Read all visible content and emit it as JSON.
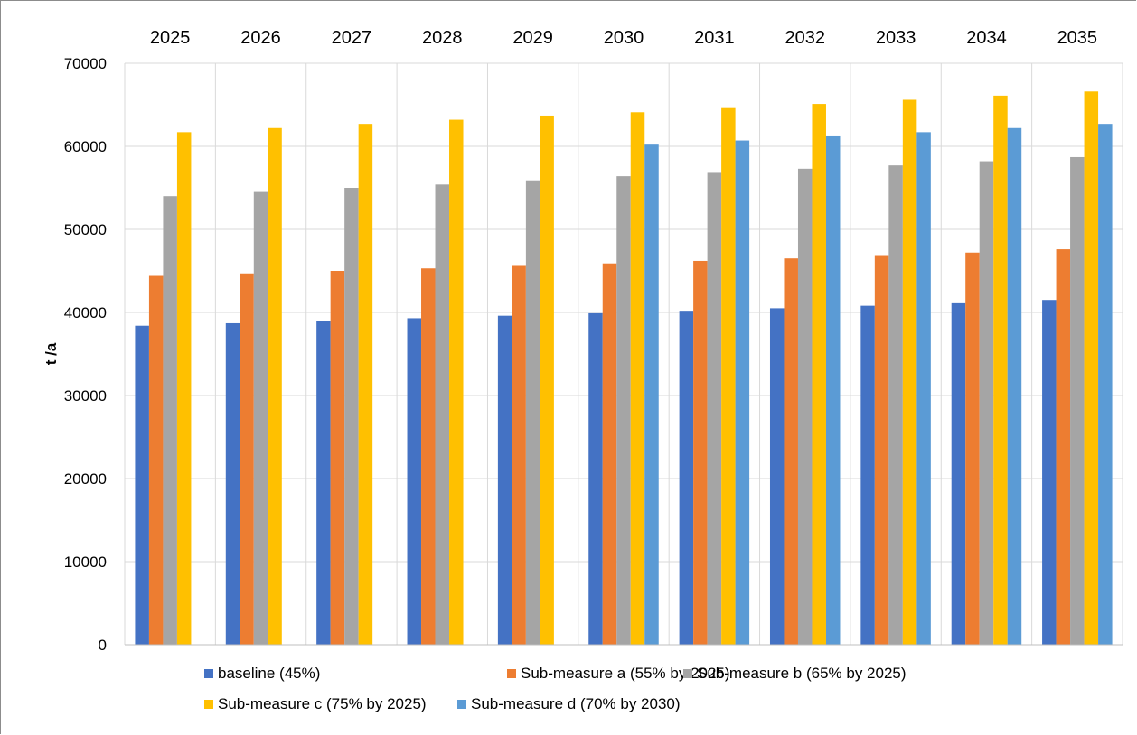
{
  "chart_data": {
    "type": "bar",
    "categories": [
      "2025",
      "2026",
      "2027",
      "2028",
      "2029",
      "2030",
      "2031",
      "2032",
      "2033",
      "2034",
      "2035"
    ],
    "ylabel": "t /a",
    "ylim": [
      0,
      70000
    ],
    "yticks": [
      0,
      10000,
      20000,
      30000,
      40000,
      50000,
      60000,
      70000
    ],
    "grid": true,
    "category_axis_position": "top",
    "legend_position": "bottom",
    "series": [
      {
        "name": "baseline (45%)",
        "color": "#4472C4",
        "values": [
          38400,
          38700,
          39000,
          39300,
          39600,
          39900,
          40200,
          40500,
          40800,
          41100,
          41500
        ]
      },
      {
        "name": "Sub-measure a (55% by 2025)",
        "color": "#ED7D31",
        "values": [
          44400,
          44700,
          45000,
          45300,
          45600,
          45900,
          46200,
          46500,
          46900,
          47200,
          47600
        ]
      },
      {
        "name": "Sub-measure b (65% by 2025)",
        "color": "#A5A5A5",
        "values": [
          54000,
          54500,
          55000,
          55400,
          55900,
          56400,
          56800,
          57300,
          57700,
          58200,
          58700
        ]
      },
      {
        "name": "Sub-measure c (75% by 2025)",
        "color": "#FFC000",
        "values": [
          61700,
          62200,
          62700,
          63200,
          63700,
          64100,
          64600,
          65100,
          65600,
          66100,
          66600
        ]
      },
      {
        "name": "Sub-measure d (70% by 2030)",
        "color": "#5B9BD5",
        "values": [
          null,
          null,
          null,
          null,
          null,
          60200,
          60700,
          61200,
          61700,
          62200,
          62700
        ]
      }
    ]
  }
}
